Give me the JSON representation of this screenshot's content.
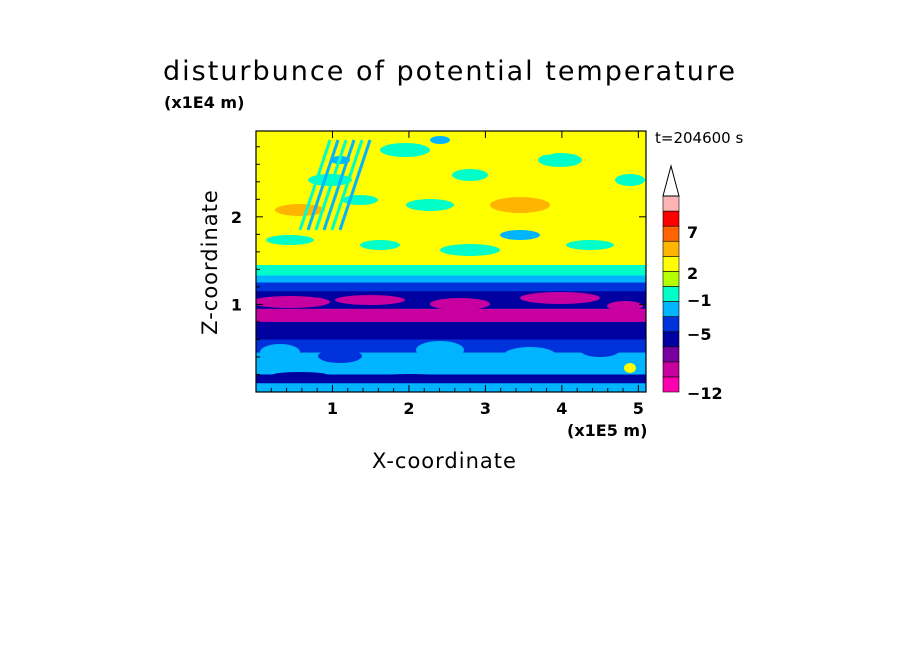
{
  "chart_data": {
    "type": "heatmap",
    "title": "disturbunce of potential temperature",
    "xlabel": "X-coordinate",
    "ylabel": "Z-coordinate",
    "x_scale_label": "(x1E5 m)",
    "y_scale_label": "(x1E4 m)",
    "annotation": "t=204600 s",
    "xlim": [
      0,
      5.1
    ],
    "ylim": [
      0,
      2.98
    ],
    "x_ticks": [
      1,
      2,
      3,
      4,
      5
    ],
    "x_tick_labels": [
      "1",
      "2",
      "3",
      "4",
      "5"
    ],
    "y_ticks": [
      1,
      2
    ],
    "y_tick_labels": [
      "1",
      "2"
    ],
    "colorbar": {
      "levels": [
        -12,
        -11,
        -8,
        -5,
        -4,
        -1,
        0,
        2,
        3,
        5,
        7,
        8,
        10
      ],
      "tick_labels": [
        "7",
        "2",
        "−1",
        "−5",
        "−12"
      ],
      "tick_values": [
        7,
        2,
        -1,
        -5,
        -12
      ],
      "colors": [
        "#ff00b0",
        "#c800a0",
        "#7800a0",
        "#0000a0",
        "#0032dc",
        "#00b4ff",
        "#00ffc8",
        "#b4ff00",
        "#ffff00",
        "#ffb400",
        "#ff6400",
        "#ff0000",
        "#ffb4b4"
      ],
      "extend": "max"
    },
    "bands": [
      {
        "z0": 2.5,
        "z1": 2.98,
        "value": 3
      },
      {
        "z0": 2.05,
        "z1": 2.5,
        "value": 4
      },
      {
        "z0": 1.75,
        "z1": 2.05,
        "value": 3
      },
      {
        "z0": 1.45,
        "z1": 1.75,
        "value": 4
      },
      {
        "z0": 1.33,
        "z1": 1.45,
        "value": 1
      },
      {
        "z0": 1.25,
        "z1": 1.33,
        "value": -0.5
      },
      {
        "z0": 1.15,
        "z1": 1.25,
        "value": -2
      },
      {
        "z0": 0.95,
        "z1": 1.15,
        "value": -4.5
      },
      {
        "z0": 0.8,
        "z1": 0.95,
        "value": -9
      },
      {
        "z0": 0.6,
        "z1": 0.8,
        "value": -4.5
      },
      {
        "z0": 0.45,
        "z1": 0.6,
        "value": -2
      },
      {
        "z0": 0.2,
        "z1": 0.45,
        "value": -0.5
      },
      {
        "z0": 0.1,
        "z1": 0.2,
        "value": -4.5
      },
      {
        "z0": 0.0,
        "z1": 0.1,
        "value": -1
      }
    ]
  }
}
